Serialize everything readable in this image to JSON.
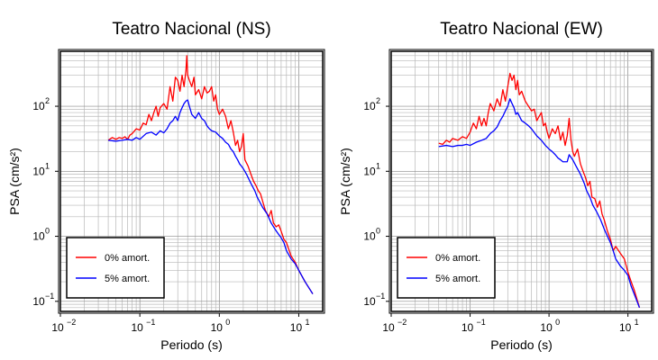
{
  "chart_data": [
    {
      "type": "line",
      "title": "Teatro Nacional (NS)",
      "xlabel": "Periodo (s)",
      "ylabel": "PSA (cm/s²)",
      "xscale": "log",
      "yscale": "log",
      "xlim": [
        0.01,
        20
      ],
      "ylim": [
        0.07,
        700
      ],
      "x_ticks": [
        "10",
        "10",
        "10",
        "10"
      ],
      "x_tick_exps": [
        "−2",
        "−1",
        "0",
        "1"
      ],
      "y_ticks": [
        "10",
        "10",
        "10",
        "10"
      ],
      "y_tick_exps": [
        "−1",
        "0",
        "1",
        "2"
      ],
      "grid": true,
      "legend_position": "bottom-left",
      "series": [
        {
          "name": "0% amort.",
          "color": "#ff0000",
          "points": [
            [
              0.04,
              30
            ],
            [
              0.045,
              33
            ],
            [
              0.05,
              31
            ],
            [
              0.055,
              33
            ],
            [
              0.06,
              32
            ],
            [
              0.065,
              34
            ],
            [
              0.07,
              31
            ],
            [
              0.075,
              36
            ],
            [
              0.08,
              38
            ],
            [
              0.09,
              45
            ],
            [
              0.1,
              43
            ],
            [
              0.11,
              55
            ],
            [
              0.12,
              52
            ],
            [
              0.13,
              75
            ],
            [
              0.14,
              60
            ],
            [
              0.15,
              80
            ],
            [
              0.16,
              100
            ],
            [
              0.17,
              70
            ],
            [
              0.18,
              95
            ],
            [
              0.2,
              110
            ],
            [
              0.22,
              90
            ],
            [
              0.24,
              200
            ],
            [
              0.26,
              120
            ],
            [
              0.28,
              280
            ],
            [
              0.3,
              250
            ],
            [
              0.32,
              170
            ],
            [
              0.34,
              300
            ],
            [
              0.36,
              200
            ],
            [
              0.38,
              350
            ],
            [
              0.39,
              600
            ],
            [
              0.4,
              300
            ],
            [
              0.42,
              250
            ],
            [
              0.45,
              200
            ],
            [
              0.48,
              280
            ],
            [
              0.5,
              150
            ],
            [
              0.55,
              180
            ],
            [
              0.6,
              130
            ],
            [
              0.65,
              200
            ],
            [
              0.7,
              160
            ],
            [
              0.75,
              170
            ],
            [
              0.8,
              200
            ],
            [
              0.85,
              120
            ],
            [
              0.9,
              150
            ],
            [
              0.95,
              90
            ],
            [
              1.0,
              75
            ],
            [
              1.1,
              90
            ],
            [
              1.2,
              70
            ],
            [
              1.3,
              45
            ],
            [
              1.4,
              60
            ],
            [
              1.5,
              40
            ],
            [
              1.6,
              25
            ],
            [
              1.7,
              30
            ],
            [
              1.8,
              20
            ],
            [
              1.9,
              24
            ],
            [
              2.0,
              38
            ],
            [
              2.1,
              15
            ],
            [
              2.3,
              12
            ],
            [
              2.5,
              9
            ],
            [
              2.7,
              7
            ],
            [
              2.9,
              6
            ],
            [
              3.1,
              5
            ],
            [
              3.3,
              4.5
            ],
            [
              3.5,
              3.5
            ],
            [
              3.8,
              2.5
            ],
            [
              4.2,
              2.0
            ],
            [
              4.5,
              2.5
            ],
            [
              4.8,
              1.6
            ],
            [
              5.2,
              1.4
            ],
            [
              5.6,
              1.5
            ],
            [
              6.0,
              1.2
            ],
            [
              6.5,
              0.9
            ],
            [
              7.0,
              0.8
            ],
            [
              8.0,
              0.5
            ],
            [
              9.0,
              0.4
            ],
            [
              10.0,
              0.3
            ],
            [
              12.0,
              0.2
            ],
            [
              15.0,
              0.13
            ]
          ]
        },
        {
          "name": "5% amort.",
          "color": "#0000ff",
          "points": [
            [
              0.04,
              30
            ],
            [
              0.05,
              29
            ],
            [
              0.06,
              30
            ],
            [
              0.07,
              31
            ],
            [
              0.08,
              30
            ],
            [
              0.09,
              33
            ],
            [
              0.1,
              31
            ],
            [
              0.12,
              38
            ],
            [
              0.14,
              40
            ],
            [
              0.16,
              36
            ],
            [
              0.18,
              42
            ],
            [
              0.2,
              39
            ],
            [
              0.22,
              45
            ],
            [
              0.24,
              55
            ],
            [
              0.26,
              60
            ],
            [
              0.28,
              70
            ],
            [
              0.3,
              60
            ],
            [
              0.32,
              80
            ],
            [
              0.34,
              95
            ],
            [
              0.36,
              110
            ],
            [
              0.38,
              120
            ],
            [
              0.4,
              125
            ],
            [
              0.42,
              100
            ],
            [
              0.45,
              75
            ],
            [
              0.5,
              65
            ],
            [
              0.55,
              80
            ],
            [
              0.6,
              65
            ],
            [
              0.65,
              60
            ],
            [
              0.7,
              50
            ],
            [
              0.75,
              45
            ],
            [
              0.8,
              42
            ],
            [
              0.9,
              40
            ],
            [
              1.0,
              35
            ],
            [
              1.1,
              32
            ],
            [
              1.2,
              28
            ],
            [
              1.3,
              26
            ],
            [
              1.4,
              22
            ],
            [
              1.5,
              20
            ],
            [
              1.6,
              17
            ],
            [
              1.7,
              15
            ],
            [
              1.8,
              13
            ],
            [
              1.9,
              12
            ],
            [
              2.0,
              11
            ],
            [
              2.2,
              9
            ],
            [
              2.5,
              6.5
            ],
            [
              2.8,
              5
            ],
            [
              3.0,
              4
            ],
            [
              3.5,
              2.8
            ],
            [
              4.0,
              2.2
            ],
            [
              4.5,
              1.6
            ],
            [
              5.0,
              1.3
            ],
            [
              5.5,
              1.1
            ],
            [
              6.0,
              0.95
            ],
            [
              6.5,
              0.8
            ],
            [
              7.0,
              0.6
            ],
            [
              8.0,
              0.45
            ],
            [
              9.0,
              0.38
            ],
            [
              10.0,
              0.3
            ],
            [
              12.0,
              0.2
            ],
            [
              15.0,
              0.13
            ]
          ]
        }
      ]
    },
    {
      "type": "line",
      "title": "Teatro Nacional (EW)",
      "xlabel": "Periodo (s)",
      "ylabel": "PSA (cm/s²)",
      "xscale": "log",
      "yscale": "log",
      "xlim": [
        0.01,
        20
      ],
      "ylim": [
        0.07,
        700
      ],
      "x_ticks": [
        "10",
        "10",
        "10",
        "10"
      ],
      "x_tick_exps": [
        "−2",
        "−1",
        "0",
        "1"
      ],
      "y_ticks": [
        "10",
        "10",
        "10",
        "10"
      ],
      "y_tick_exps": [
        "−1",
        "0",
        "1",
        "2"
      ],
      "grid": true,
      "legend_position": "bottom-left",
      "series": [
        {
          "name": "0% amort.",
          "color": "#ff0000",
          "points": [
            [
              0.04,
              27
            ],
            [
              0.045,
              26
            ],
            [
              0.05,
              30
            ],
            [
              0.055,
              28
            ],
            [
              0.06,
              32
            ],
            [
              0.07,
              30
            ],
            [
              0.08,
              34
            ],
            [
              0.09,
              32
            ],
            [
              0.1,
              40
            ],
            [
              0.11,
              55
            ],
            [
              0.12,
              45
            ],
            [
              0.13,
              70
            ],
            [
              0.14,
              50
            ],
            [
              0.15,
              65
            ],
            [
              0.16,
              50
            ],
            [
              0.17,
              80
            ],
            [
              0.18,
              110
            ],
            [
              0.2,
              85
            ],
            [
              0.22,
              130
            ],
            [
              0.24,
              100
            ],
            [
              0.26,
              180
            ],
            [
              0.28,
              120
            ],
            [
              0.3,
              200
            ],
            [
              0.32,
              320
            ],
            [
              0.34,
              250
            ],
            [
              0.36,
              300
            ],
            [
              0.38,
              180
            ],
            [
              0.4,
              250
            ],
            [
              0.42,
              150
            ],
            [
              0.45,
              170
            ],
            [
              0.5,
              120
            ],
            [
              0.55,
              100
            ],
            [
              0.6,
              85
            ],
            [
              0.65,
              90
            ],
            [
              0.7,
              60
            ],
            [
              0.75,
              70
            ],
            [
              0.8,
              80
            ],
            [
              0.85,
              50
            ],
            [
              0.9,
              55
            ],
            [
              0.95,
              40
            ],
            [
              1.0,
              32
            ],
            [
              1.1,
              45
            ],
            [
              1.2,
              38
            ],
            [
              1.3,
              50
            ],
            [
              1.4,
              30
            ],
            [
              1.5,
              40
            ],
            [
              1.6,
              25
            ],
            [
              1.7,
              35
            ],
            [
              1.8,
              65
            ],
            [
              1.9,
              30
            ],
            [
              2.0,
              20
            ],
            [
              2.1,
              17
            ],
            [
              2.3,
              22
            ],
            [
              2.5,
              13
            ],
            [
              2.7,
              10
            ],
            [
              2.9,
              8
            ],
            [
              3.1,
              6
            ],
            [
              3.3,
              7
            ],
            [
              3.5,
              4
            ],
            [
              3.8,
              3.8
            ],
            [
              4.1,
              2.8
            ],
            [
              4.4,
              3.5
            ],
            [
              4.7,
              2.2
            ],
            [
              5.0,
              1.8
            ],
            [
              5.5,
              1.2
            ],
            [
              6.0,
              0.9
            ],
            [
              6.5,
              0.6
            ],
            [
              7.0,
              0.7
            ],
            [
              8.0,
              0.55
            ],
            [
              9.0,
              0.45
            ],
            [
              10.0,
              0.28
            ],
            [
              11.0,
              0.2
            ],
            [
              12.0,
              0.15
            ],
            [
              14.0,
              0.08
            ]
          ]
        },
        {
          "name": "5% amort.",
          "color": "#0000ff",
          "points": [
            [
              0.04,
              24
            ],
            [
              0.05,
              25
            ],
            [
              0.06,
              24
            ],
            [
              0.07,
              25
            ],
            [
              0.08,
              25
            ],
            [
              0.09,
              26
            ],
            [
              0.1,
              25
            ],
            [
              0.12,
              28
            ],
            [
              0.14,
              30
            ],
            [
              0.16,
              32
            ],
            [
              0.18,
              38
            ],
            [
              0.2,
              42
            ],
            [
              0.22,
              48
            ],
            [
              0.24,
              60
            ],
            [
              0.26,
              70
            ],
            [
              0.28,
              85
            ],
            [
              0.3,
              100
            ],
            [
              0.32,
              130
            ],
            [
              0.34,
              110
            ],
            [
              0.36,
              95
            ],
            [
              0.38,
              75
            ],
            [
              0.4,
              80
            ],
            [
              0.45,
              60
            ],
            [
              0.5,
              55
            ],
            [
              0.55,
              50
            ],
            [
              0.6,
              45
            ],
            [
              0.7,
              35
            ],
            [
              0.8,
              30
            ],
            [
              0.9,
              25
            ],
            [
              1.0,
              22
            ],
            [
              1.1,
              20
            ],
            [
              1.2,
              18
            ],
            [
              1.3,
              16
            ],
            [
              1.4,
              15
            ],
            [
              1.5,
              14
            ],
            [
              1.7,
              14
            ],
            [
              1.8,
              18
            ],
            [
              2.0,
              15
            ],
            [
              2.2,
              12
            ],
            [
              2.5,
              9
            ],
            [
              2.8,
              6.5
            ],
            [
              3.0,
              5
            ],
            [
              3.3,
              4
            ],
            [
              3.6,
              3
            ],
            [
              4.0,
              2.4
            ],
            [
              4.5,
              1.8
            ],
            [
              5.0,
              1.3
            ],
            [
              5.5,
              1.0
            ],
            [
              6.0,
              0.8
            ],
            [
              6.5,
              0.6
            ],
            [
              7.0,
              0.45
            ],
            [
              8.0,
              0.35
            ],
            [
              9.0,
              0.3
            ],
            [
              10.0,
              0.25
            ],
            [
              11.0,
              0.17
            ],
            [
              12.0,
              0.13
            ],
            [
              14.0,
              0.08
            ]
          ]
        }
      ]
    }
  ]
}
